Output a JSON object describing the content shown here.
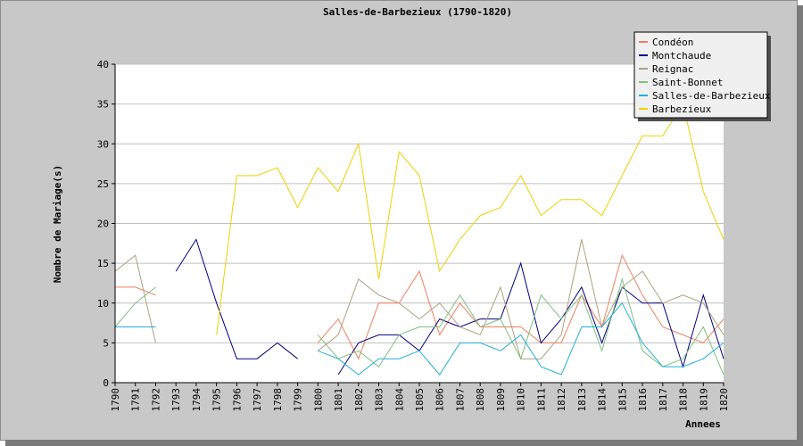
{
  "chart_data": {
    "type": "line",
    "title": "Salles-de-Barbezieux (1790-1820)",
    "xlabel": "Annees",
    "ylabel": "Nombre de Mariage(s)",
    "ylim": [
      0,
      40
    ],
    "yticks": [
      "0",
      "5",
      "10",
      "15",
      "20",
      "25",
      "30",
      "35",
      "40"
    ],
    "grid": true,
    "legend_position": "top-right",
    "categories": [
      "1790",
      "1791",
      "1792",
      "1793",
      "1794",
      "1795",
      "1796",
      "1797",
      "1798",
      "1799",
      "1800",
      "1801",
      "1802",
      "1803",
      "1804",
      "1805",
      "1806",
      "1807",
      "1808",
      "1809",
      "1810",
      "1811",
      "1812",
      "1813",
      "1814",
      "1815",
      "1816",
      "1817",
      "1818",
      "1819",
      "1820"
    ],
    "series": [
      {
        "name": "Condéon",
        "color": "#f08060",
        "values": [
          12,
          12,
          11,
          null,
          null,
          null,
          null,
          null,
          null,
          null,
          5,
          8,
          3,
          10,
          10,
          14,
          6,
          10,
          7,
          7,
          7,
          5,
          5,
          11,
          7,
          16,
          11,
          7,
          6,
          5,
          8
        ]
      },
      {
        "name": "Montchaude",
        "color": "#000080",
        "values": [
          null,
          null,
          null,
          14,
          18,
          10,
          3,
          3,
          5,
          3,
          null,
          1,
          5,
          6,
          6,
          4,
          8,
          7,
          8,
          8,
          15,
          5,
          8,
          12,
          5,
          12,
          10,
          10,
          2,
          11,
          3
        ]
      },
      {
        "name": "Reignac",
        "color": "#b0a080",
        "values": [
          14,
          16,
          5,
          null,
          null,
          null,
          null,
          null,
          null,
          null,
          4,
          6,
          13,
          11,
          10,
          8,
          10,
          7,
          6,
          12,
          3,
          3,
          6,
          18,
          7,
          12,
          14,
          10,
          11,
          10,
          6
        ]
      },
      {
        "name": "Saint-Bonnet",
        "color": "#80c080",
        "values": [
          7,
          10,
          12,
          null,
          null,
          null,
          null,
          null,
          null,
          null,
          6,
          3,
          4,
          2,
          6,
          7,
          7,
          11,
          7,
          8,
          3,
          11,
          8,
          11,
          4,
          13,
          4,
          2,
          3,
          7,
          1
        ]
      },
      {
        "name": "Salles-de-Barbezieux",
        "color": "#20b0d8",
        "values": [
          7,
          7,
          7,
          null,
          null,
          null,
          null,
          null,
          null,
          null,
          4,
          3,
          1,
          3,
          3,
          4,
          1,
          5,
          5,
          4,
          6,
          2,
          1,
          7,
          7,
          10,
          5,
          2,
          2,
          3,
          5
        ]
      },
      {
        "name": "Barbezieux",
        "color": "#f0d000",
        "values": [
          null,
          null,
          null,
          null,
          null,
          6,
          26,
          26,
          27,
          22,
          27,
          24,
          30,
          13,
          29,
          26,
          14,
          18,
          21,
          22,
          26,
          21,
          23,
          23,
          21,
          26,
          31,
          31,
          35,
          24,
          18
        ]
      }
    ]
  }
}
